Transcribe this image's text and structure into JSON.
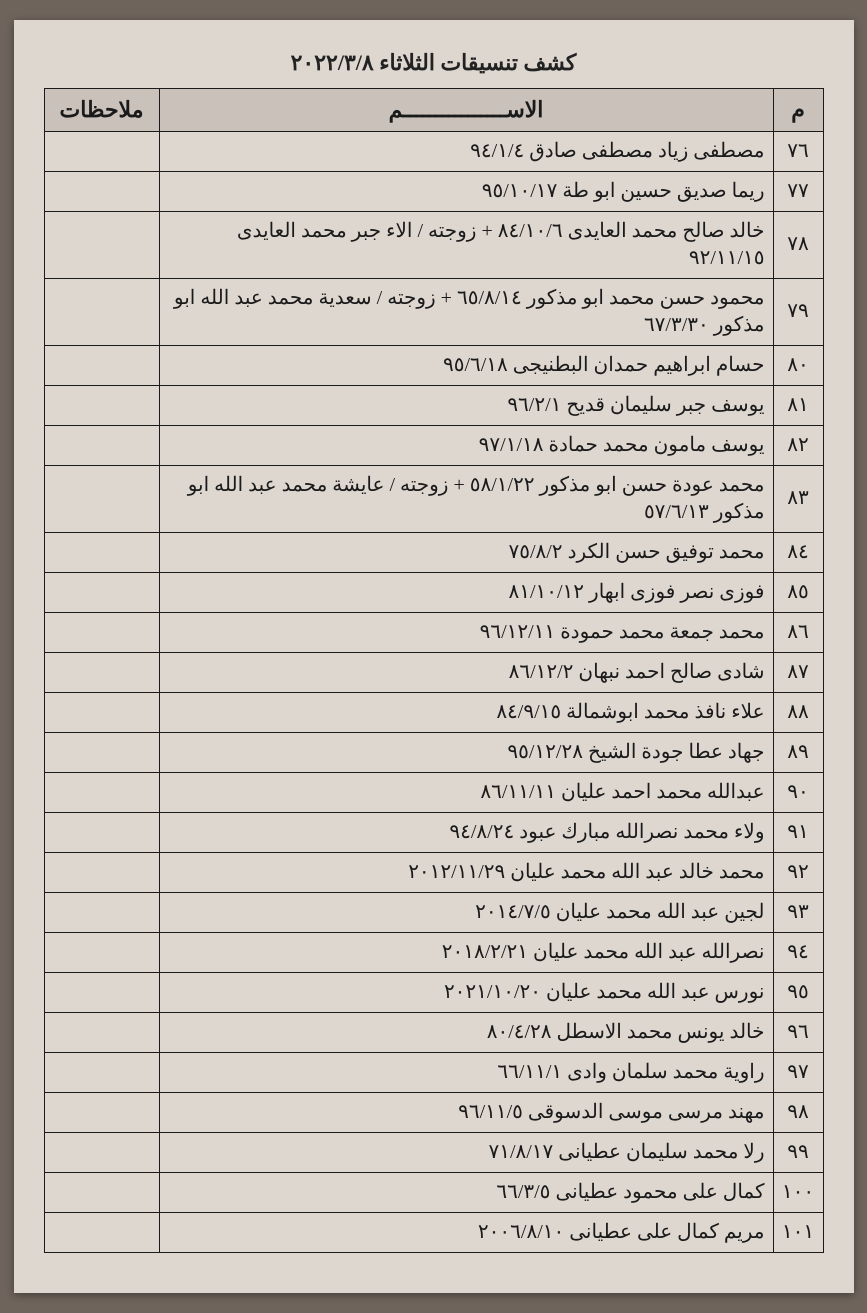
{
  "title": "كشف تنسيقات الثلاثاء ٢٠٢٢/٣/٨",
  "headers": {
    "index": "م",
    "name": "الاســــــــــــــــم",
    "notes": "ملاحظات"
  },
  "rows": [
    {
      "n": "٧٦",
      "name": "مصطفى زياد مصطفى صادق ٩٤/١/٤",
      "notes": ""
    },
    {
      "n": "٧٧",
      "name": "ريما صديق حسين ابو طة ٩٥/١٠/١٧",
      "notes": ""
    },
    {
      "n": "٧٨",
      "name": "خالد صالح محمد العايدى ٨٤/١٠/٦ + زوجته / الاء جبر محمد العايدى ٩٢/١١/١٥",
      "notes": ""
    },
    {
      "n": "٧٩",
      "name": "محمود حسن محمد ابو مذكور ٦٥/٨/١٤ + زوجته / سعدية محمد عبد الله ابو مذكور ٦٧/٣/٣٠",
      "notes": ""
    },
    {
      "n": "٨٠",
      "name": "حسام ابراهيم حمدان البطنيجى ٩٥/٦/١٨",
      "notes": ""
    },
    {
      "n": "٨١",
      "name": "يوسف جبر سليمان قديح ٩٦/٢/١",
      "notes": ""
    },
    {
      "n": "٨٢",
      "name": "يوسف مامون محمد حمادة ٩٧/١/١٨",
      "notes": ""
    },
    {
      "n": "٨٣",
      "name": "محمد عودة حسن ابو مذكور ٥٨/١/٢٢ + زوجته / عايشة محمد عبد الله ابو مذكور ٥٧/٦/١٣",
      "notes": ""
    },
    {
      "n": "٨٤",
      "name": "محمد توفيق حسن الكرد ٧٥/٨/٢",
      "notes": ""
    },
    {
      "n": "٨٥",
      "name": "فوزى نصر فوزى ابهار ٨١/١٠/١٢",
      "notes": ""
    },
    {
      "n": "٨٦",
      "name": "محمد جمعة محمد حمودة ٩٦/١٢/١١",
      "notes": ""
    },
    {
      "n": "٨٧",
      "name": "شادى صالح احمد نبهان ٨٦/١٢/٢",
      "notes": ""
    },
    {
      "n": "٨٨",
      "name": "علاء نافذ محمد ابوشمالة ٨٤/٩/١٥",
      "notes": ""
    },
    {
      "n": "٨٩",
      "name": "جهاد عطا جودة الشيخ ٩٥/١٢/٢٨",
      "notes": ""
    },
    {
      "n": "٩٠",
      "name": "عبدالله محمد احمد عليان ٨٦/١١/١١",
      "notes": ""
    },
    {
      "n": "٩١",
      "name": "ولاء محمد نصرالله مبارك عبود ٩٤/٨/٢٤",
      "notes": ""
    },
    {
      "n": "٩٢",
      "name": "محمد خالد عبد الله محمد عليان ٢٠١٢/١١/٢٩",
      "notes": ""
    },
    {
      "n": "٩٣",
      "name": "لجين عبد الله محمد عليان ٢٠١٤/٧/٥",
      "notes": ""
    },
    {
      "n": "٩٤",
      "name": "نصرالله عبد الله محمد عليان ٢٠١٨/٢/٢١",
      "notes": ""
    },
    {
      "n": "٩٥",
      "name": "نورس عبد الله محمد عليان ٢٠٢١/١٠/٢٠",
      "notes": ""
    },
    {
      "n": "٩٦",
      "name": "خالد يونس محمد الاسطل ٨٠/٤/٢٨",
      "notes": ""
    },
    {
      "n": "٩٧",
      "name": "راوية محمد سلمان وادى ٦٦/١١/١",
      "notes": ""
    },
    {
      "n": "٩٨",
      "name": "مهند مرسى موسى الدسوقى ٩٦/١١/٥",
      "notes": ""
    },
    {
      "n": "٩٩",
      "name": "رلا محمد سليمان عطيانى ٧١/٨/١٧",
      "notes": ""
    },
    {
      "n": "١٠٠",
      "name": "كمال على محمود عطيانى ٦٦/٣/٥",
      "notes": ""
    },
    {
      "n": "١٠١",
      "name": "مريم كمال على عطيانى ٢٠٠٦/٨/١٠",
      "notes": ""
    }
  ],
  "style": {
    "page_bg": "#ded7d0",
    "outer_bg": "#6f645c",
    "header_bg": "#c9c1ba",
    "border": "#1a1a1a",
    "text": "#1a1a1a",
    "title_fontsize": 22,
    "cell_fontsize": 20,
    "col_widths": {
      "index": 50,
      "notes": 115
    }
  }
}
